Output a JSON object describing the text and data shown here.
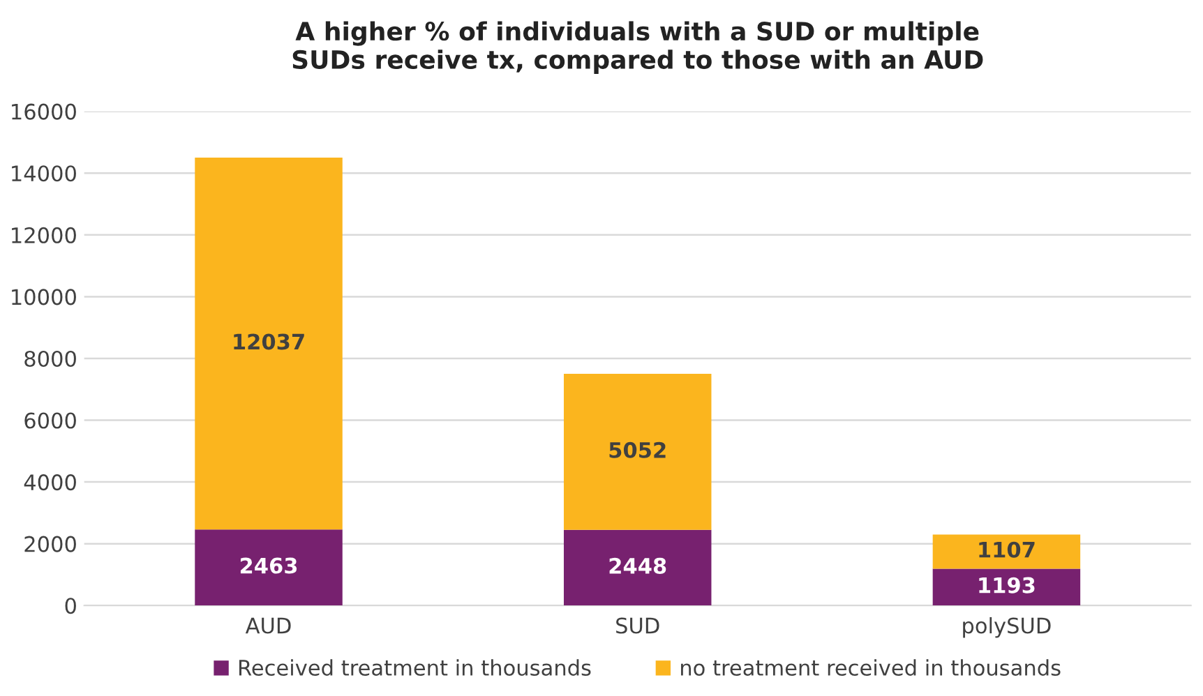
{
  "chart_data": {
    "type": "bar",
    "title": "A higher % of individuals with a SUD or multiple\nSUDs receive tx, compared to those with an AUD",
    "categories": [
      "AUD",
      "SUD",
      "polySUD"
    ],
    "stacked": true,
    "series": [
      {
        "name": "Received treatment in thousands",
        "color": "#77216f",
        "values": [
          2463,
          2448,
          1193
        ]
      },
      {
        "name": "no treatment received in thousands",
        "color": "#fbb51e",
        "values": [
          12037,
          5052,
          1107
        ]
      }
    ],
    "ylim": [
      0,
      16000
    ],
    "yticks": [
      0,
      2000,
      4000,
      6000,
      8000,
      10000,
      12000,
      14000,
      16000
    ],
    "grid": "y",
    "legend": "bottom",
    "data_labels": true
  }
}
